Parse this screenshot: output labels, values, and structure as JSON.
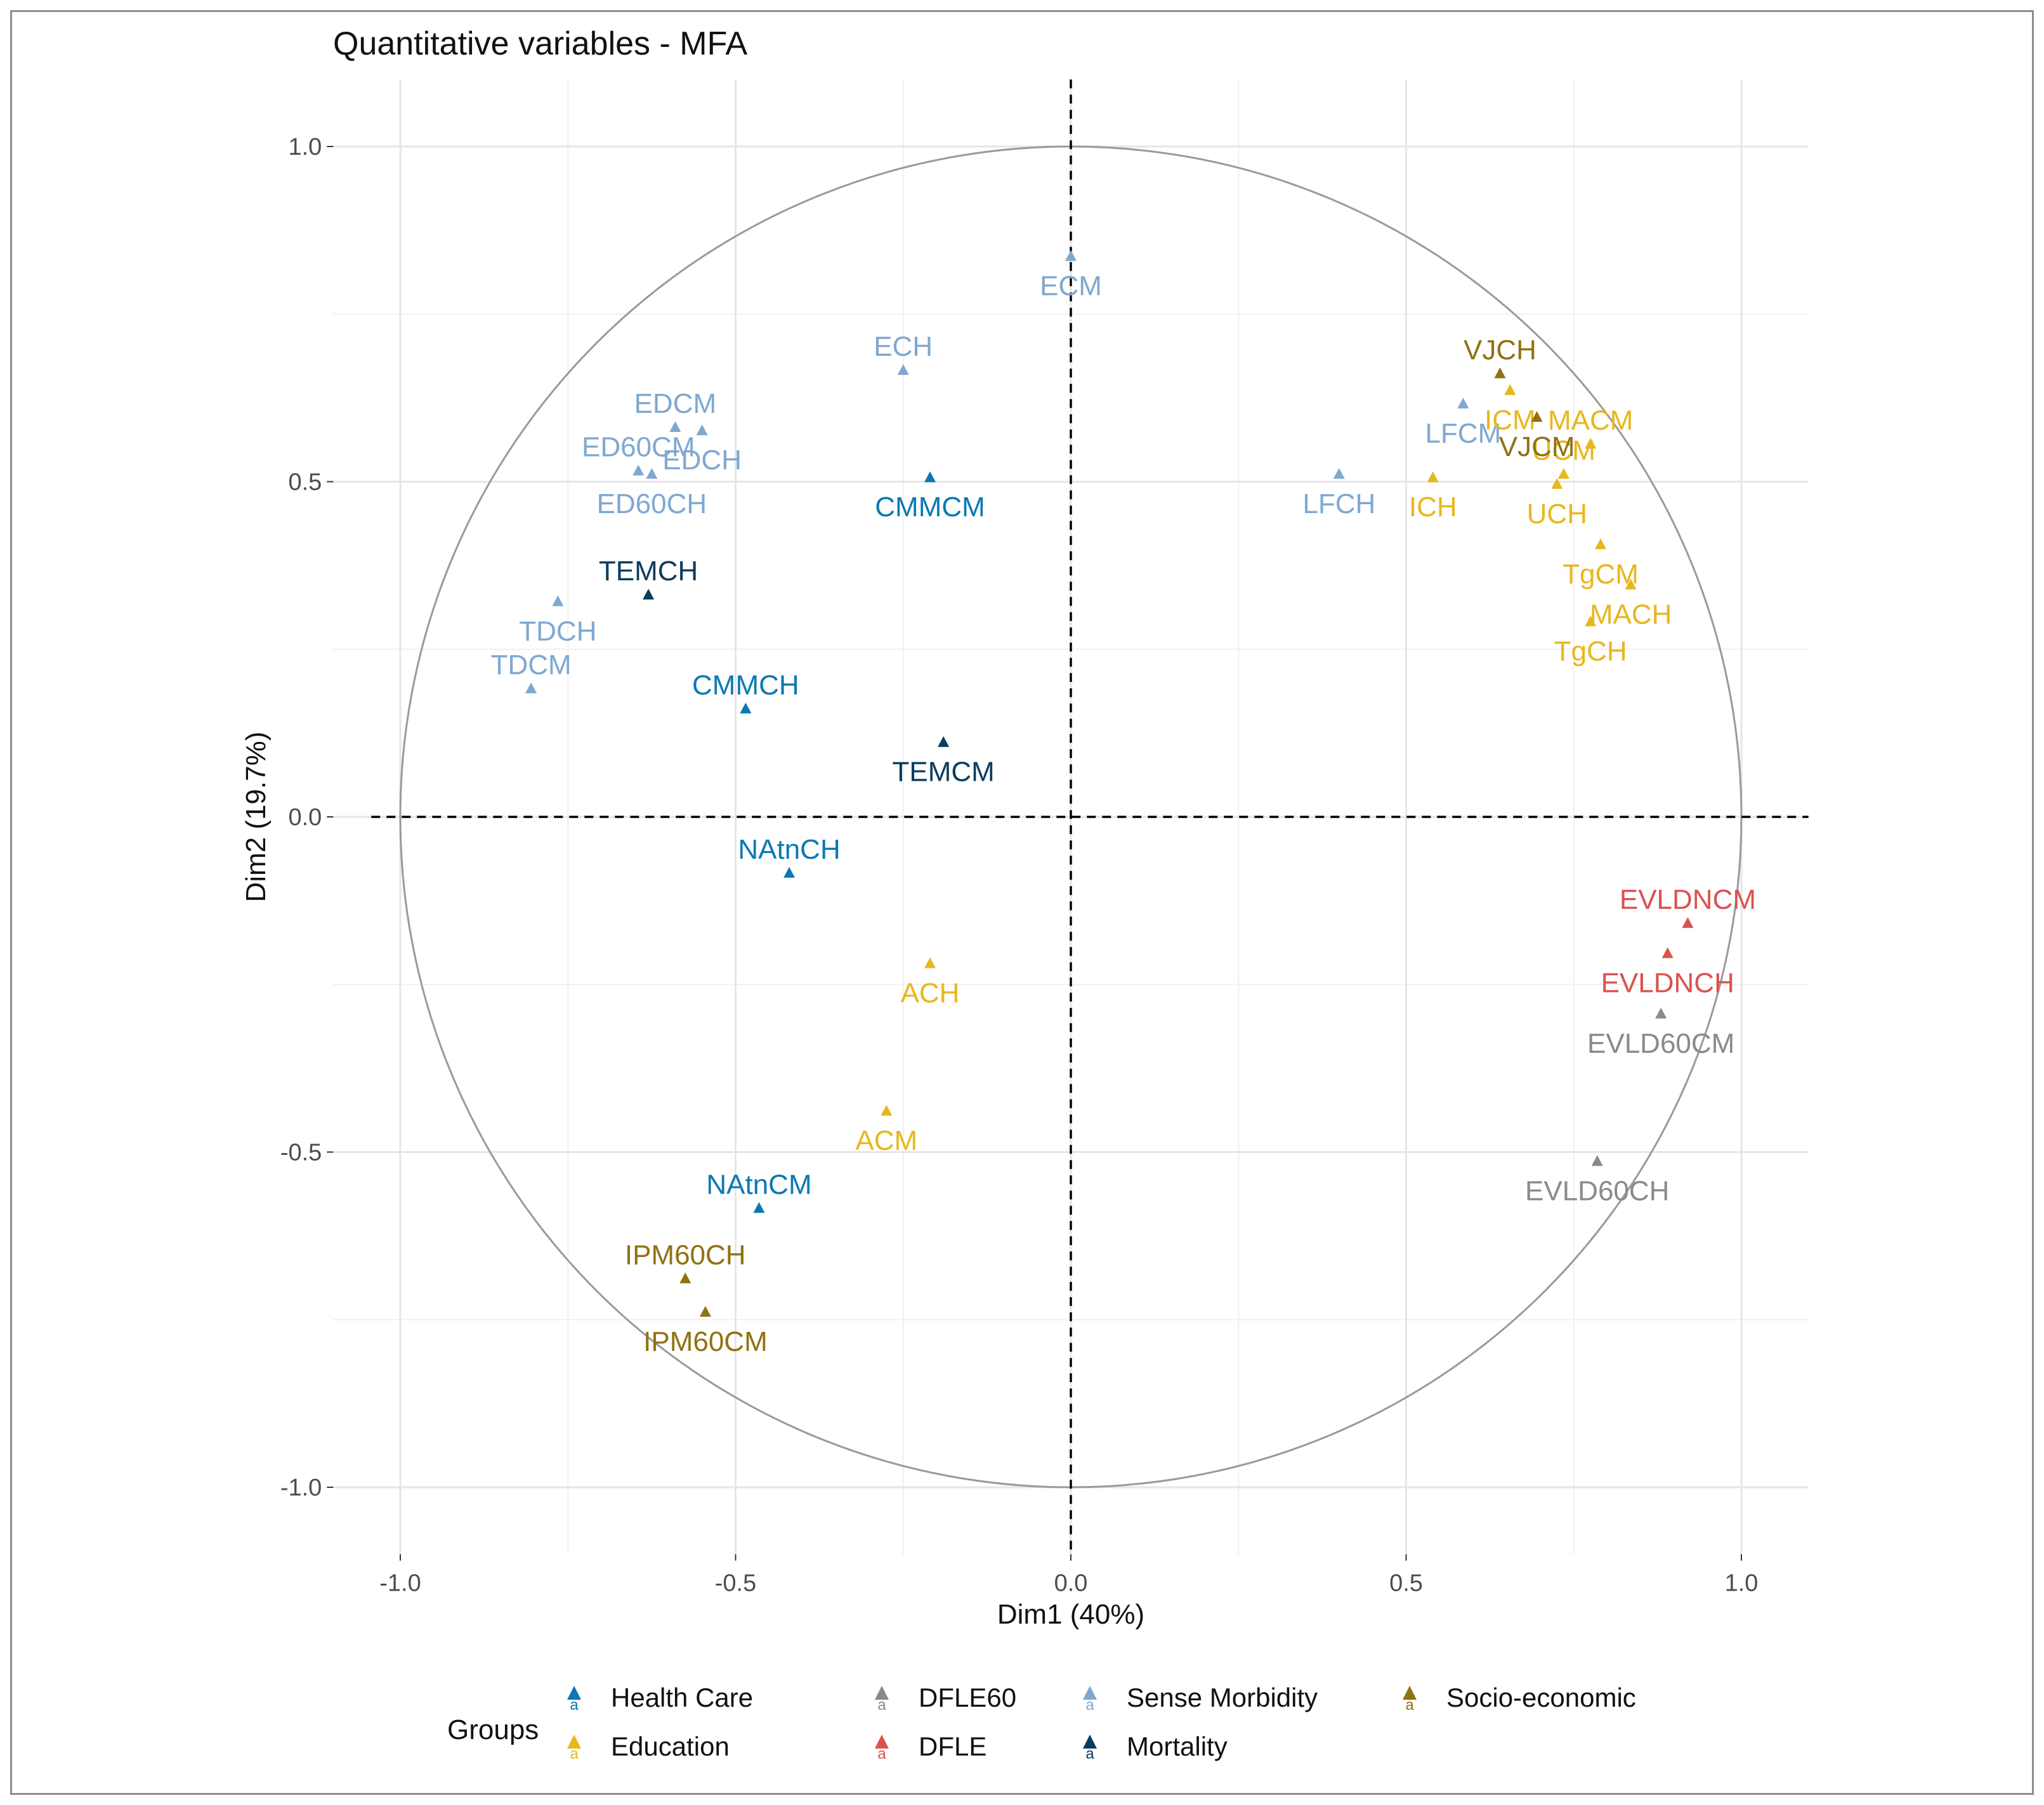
{
  "chart_data": {
    "type": "scatter",
    "title": "Quantitative variables - MFA",
    "xlabel": "Dim1 (40%)",
    "ylabel": "Dim2 (19.7%)",
    "xlim": [
      -1.1,
      1.1
    ],
    "ylim": [
      -1.1,
      1.1
    ],
    "x_ticks": [
      -1.0,
      -0.5,
      0.0,
      0.5,
      1.0
    ],
    "x_tick_labels": [
      "-1.0",
      "-0.5",
      "0.0",
      "0.5",
      "1.0"
    ],
    "y_ticks": [
      -1.0,
      -0.5,
      0.0,
      0.5,
      1.0
    ],
    "y_tick_labels": [
      "-1.0",
      "-0.5",
      "0.0",
      "0.5",
      "1.0"
    ],
    "grid": true,
    "unit_circle": true,
    "reference_lines": {
      "x": 0,
      "y": 0,
      "style": "dashed"
    },
    "legend": {
      "title": "Groups",
      "placement": "bottom",
      "entries": [
        {
          "name": "Health Care",
          "color": "#0a79b3"
        },
        {
          "name": "DFLE60",
          "color": "#8a8a8a"
        },
        {
          "name": "Sense Morbidity",
          "color": "#7fa8d1"
        },
        {
          "name": "Socio-economic",
          "color": "#8f7212"
        },
        {
          "name": "Education",
          "color": "#e8b71c"
        },
        {
          "name": "DFLE",
          "color": "#d9534f"
        },
        {
          "name": "Mortality",
          "color": "#0b3c5d"
        }
      ],
      "symbol": "a"
    },
    "points": [
      {
        "label": "ECM",
        "group": "Sense Morbidity",
        "x": 0.0,
        "y": 0.835,
        "label_pos": "below"
      },
      {
        "label": "ECH",
        "group": "Sense Morbidity",
        "x": -0.25,
        "y": 0.665,
        "label_pos": "above"
      },
      {
        "label": "EDCM",
        "group": "Sense Morbidity",
        "x": -0.59,
        "y": 0.58,
        "label_pos": "above"
      },
      {
        "label": "EDCH",
        "group": "Sense Morbidity",
        "x": -0.55,
        "y": 0.575,
        "label_pos": "below"
      },
      {
        "label": "ED60CM",
        "group": "Sense Morbidity",
        "x": -0.645,
        "y": 0.515,
        "label_pos": "above"
      },
      {
        "label": "ED60CH",
        "group": "Sense Morbidity",
        "x": -0.625,
        "y": 0.51,
        "label_pos": "below"
      },
      {
        "label": "TDCH",
        "group": "Sense Morbidity",
        "x": -0.765,
        "y": 0.32,
        "label_pos": "below"
      },
      {
        "label": "TDCM",
        "group": "Sense Morbidity",
        "x": -0.805,
        "y": 0.19,
        "label_pos": "above"
      },
      {
        "label": "LFCM",
        "group": "Sense Morbidity",
        "x": 0.585,
        "y": 0.615,
        "label_pos": "below"
      },
      {
        "label": "LFCH",
        "group": "Sense Morbidity",
        "x": 0.4,
        "y": 0.51,
        "label_pos": "below"
      },
      {
        "label": "CMMCM",
        "group": "Health Care",
        "x": -0.21,
        "y": 0.505,
        "label_pos": "below"
      },
      {
        "label": "CMMCH",
        "group": "Health Care",
        "x": -0.485,
        "y": 0.16,
        "label_pos": "above"
      },
      {
        "label": "NAtnCH",
        "group": "Health Care",
        "x": -0.42,
        "y": -0.085,
        "label_pos": "above"
      },
      {
        "label": "NAtnCM",
        "group": "Health Care",
        "x": -0.465,
        "y": -0.585,
        "label_pos": "above"
      },
      {
        "label": "TEMCH",
        "group": "Mortality",
        "x": -0.63,
        "y": 0.33,
        "label_pos": "above"
      },
      {
        "label": "TEMCM",
        "group": "Mortality",
        "x": -0.19,
        "y": 0.11,
        "label_pos": "below"
      },
      {
        "label": "ACH",
        "group": "Education",
        "x": -0.21,
        "y": -0.22,
        "label_pos": "below"
      },
      {
        "label": "ACM",
        "group": "Education",
        "x": -0.275,
        "y": -0.44,
        "label_pos": "below"
      },
      {
        "label": "ICM",
        "group": "Education",
        "x": 0.655,
        "y": 0.635,
        "label_pos": "below"
      },
      {
        "label": "ICH",
        "group": "Education",
        "x": 0.54,
        "y": 0.505,
        "label_pos": "below"
      },
      {
        "label": "MACM",
        "group": "Education",
        "x": 0.775,
        "y": 0.555,
        "label_pos": "above"
      },
      {
        "label": "UCM",
        "group": "Education",
        "x": 0.735,
        "y": 0.51,
        "label_pos": "above"
      },
      {
        "label": "UCH",
        "group": "Education",
        "x": 0.725,
        "y": 0.495,
        "label_pos": "below"
      },
      {
        "label": "TgCM",
        "group": "Education",
        "x": 0.79,
        "y": 0.405,
        "label_pos": "below"
      },
      {
        "label": "MACH",
        "group": "Education",
        "x": 0.835,
        "y": 0.345,
        "label_pos": "below"
      },
      {
        "label": "TgCH",
        "group": "Education",
        "x": 0.775,
        "y": 0.29,
        "label_pos": "below"
      },
      {
        "label": "VJCH",
        "group": "Socio-economic",
        "x": 0.64,
        "y": 0.66,
        "label_pos": "above"
      },
      {
        "label": "VJCM",
        "group": "Socio-economic",
        "x": 0.695,
        "y": 0.595,
        "label_pos": "below"
      },
      {
        "label": "IPM60CH",
        "group": "Socio-economic",
        "x": -0.575,
        "y": -0.69,
        "label_pos": "above"
      },
      {
        "label": "IPM60CM",
        "group": "Socio-economic",
        "x": -0.545,
        "y": -0.74,
        "label_pos": "below"
      },
      {
        "label": "EVLDNCM",
        "group": "DFLE",
        "x": 0.92,
        "y": -0.16,
        "label_pos": "above"
      },
      {
        "label": "EVLDNCH",
        "group": "DFLE",
        "x": 0.89,
        "y": -0.205,
        "label_pos": "below"
      },
      {
        "label": "EVLD60CM",
        "group": "DFLE60",
        "x": 0.88,
        "y": -0.295,
        "label_pos": "below"
      },
      {
        "label": "EVLD60CH",
        "group": "DFLE60",
        "x": 0.785,
        "y": -0.515,
        "label_pos": "below"
      }
    ]
  }
}
